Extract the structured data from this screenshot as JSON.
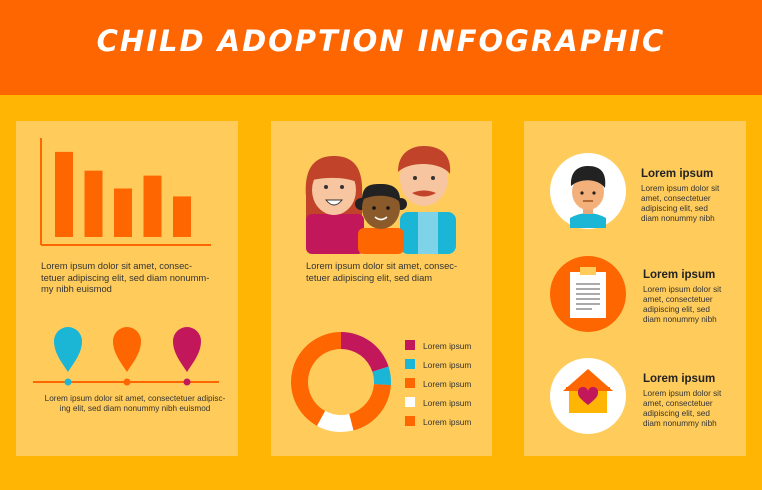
{
  "header": {
    "title": "CHILD ADOPTION INFOGRAPHIC"
  },
  "colors": {
    "orange": "#FE6602",
    "yellow": "#FEB504",
    "panel": "#FFCC5C",
    "crimson": "#C2185B",
    "teal": "#1BB6D6",
    "white": "#FFFFFF"
  },
  "panel_left": {
    "bar_chart": {
      "values": [
        86,
        67,
        49,
        62,
        41
      ],
      "ylim": [
        0,
        100
      ]
    },
    "text1_lines": [
      "Lorem ipsum dolor sit amet, consec-",
      "tetuer adipiscing elit, sed diam nonumm-",
      "my nibh euismod"
    ],
    "pins": [
      "teal-pin",
      "orange-pin",
      "crimson-pin"
    ],
    "text2_lines": [
      "Lorem ipsum dolor sit amet, consectetuer adipisc-",
      "ing elit, sed diam nonummy nibh euismod"
    ]
  },
  "panel_middle": {
    "family_icon": "family-illustration",
    "text_lines": [
      "Lorem ipsum dolor sit amet, consec-",
      "tetuer adipiscing elit, sed diam"
    ],
    "donut": {
      "slices": [
        {
          "label": "Lorem ipsum",
          "color": "#C2185B",
          "value": 20
        },
        {
          "label": "Lorem ipsum",
          "color": "#1BB6D6",
          "value": 6
        },
        {
          "label": "Lorem ipsum",
          "color": "#FE6602",
          "value": 20
        },
        {
          "label": "Lorem ipsum",
          "color": "#FFFFFF",
          "value": 12
        },
        {
          "label": "Lorem ipsum",
          "color": "#FE6602",
          "value": 42
        }
      ]
    }
  },
  "panel_right": {
    "items": [
      {
        "icon": "child-face-icon",
        "title": "Lorem ipsum",
        "lines": [
          "Lorem ipsum dolor sit",
          "amet, consectetuer",
          "adipiscing elit, sed",
          "diam nonummy nibh"
        ]
      },
      {
        "icon": "clipboard-icon",
        "title": "Lorem ipsum",
        "lines": [
          "Lorem ipsum dolor sit",
          "amet, consectetuer",
          "adipiscing elit, sed",
          "diam nonummy nibh"
        ]
      },
      {
        "icon": "house-heart-icon",
        "title": "Lorem ipsum",
        "lines": [
          "Lorem ipsum dolor sit",
          "amet, consectetuer",
          "adipiscing elit, sed",
          "diam nonummy nibh"
        ]
      }
    ]
  }
}
